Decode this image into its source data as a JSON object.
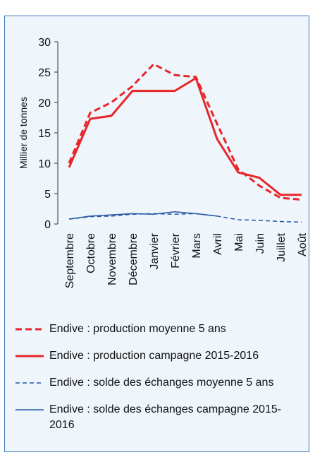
{
  "chart_data": {
    "type": "line",
    "y_label": "Millier de tonnes",
    "categories": [
      "Septembre",
      "Octobre",
      "Novembre",
      "Décembre",
      "Janvier",
      "Février",
      "Mars",
      "Avril",
      "Mai",
      "Juin",
      "Juillet",
      "Août"
    ],
    "ylim": [
      0,
      30
    ],
    "yticks": [
      0,
      5,
      10,
      15,
      20,
      25,
      30
    ],
    "series": [
      {
        "name": "Endive : production moyenne 5 ans",
        "color": "#e8262a",
        "dashed": true,
        "width": 3,
        "values": [
          10,
          18.3,
          20,
          22.7,
          26.3,
          24.5,
          24.2,
          16.5,
          9,
          6.3,
          4.3,
          4
        ]
      },
      {
        "name": "Endive : production campagne 2015-2016",
        "color": "#e8262a",
        "dashed": false,
        "width": 3,
        "values": [
          9.3,
          17.3,
          17.8,
          21.9,
          21.9,
          21.9,
          24,
          14,
          8.5,
          7.6,
          4.8,
          4.8
        ]
      },
      {
        "name": "Endive : solde des échanges moyenne 5 ans",
        "color": "#2456a4",
        "dashed": true,
        "width": 1.5,
        "values": [
          0.8,
          1.2,
          1.3,
          1.6,
          1.7,
          1.6,
          1.7,
          1.3,
          0.7,
          0.6,
          0.4,
          0.3
        ]
      },
      {
        "name": "Endive : solde des échanges campagne 2015-2016",
        "color": "#2456a4",
        "dashed": false,
        "width": 1.5,
        "values": [
          0.8,
          1.3,
          1.5,
          1.7,
          1.6,
          2.0,
          1.7,
          1.3,
          null,
          null,
          null,
          null
        ]
      }
    ]
  }
}
